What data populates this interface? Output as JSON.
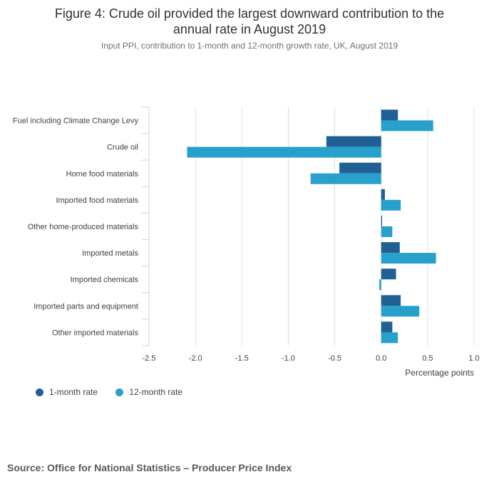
{
  "title_line1": "Figure 4: Crude oil provided the largest downward contribution to the",
  "title_line2": "annual rate in August 2019",
  "subtitle": "Input PPI, contribution to 1-month and 12-month growth rate, UK, August 2019",
  "source": "Source: Office for National Statistics – Producer Price Index",
  "colors": {
    "one_month": "#206095",
    "twelve_month": "#27a0cc",
    "grid": "#e0e0e0",
    "axis": "#d0d0de"
  },
  "chart_data": {
    "type": "bar",
    "orientation": "horizontal",
    "title": "Figure 4: Crude oil provided the largest downward contribution to the annual rate in August 2019",
    "xlabel": "Percentage points",
    "ylabel": "",
    "xlim": [
      -2.5,
      1.0
    ],
    "xticks": [
      -2.5,
      -2.0,
      -1.5,
      -1.0,
      -0.5,
      0.0,
      0.5,
      1.0
    ],
    "xtick_labels": [
      "-2.5",
      "-2.0",
      "-1.5",
      "-1.0",
      "-0.5",
      "0.0",
      "0.5",
      "1.0"
    ],
    "categories": [
      "Fuel including Climate Change Levy",
      "Crude oil",
      "Home food materials",
      "Imported food materials",
      "Other home-produced materials",
      "Imported metals",
      "Imported chemicals",
      "Imported parts and equipment",
      "Other imported materials"
    ],
    "series": [
      {
        "name": "1-month rate",
        "values": [
          0.18,
          -0.59,
          -0.45,
          0.04,
          0.01,
          0.2,
          0.16,
          0.21,
          0.12
        ]
      },
      {
        "name": "12-month rate",
        "values": [
          0.56,
          -2.09,
          -0.76,
          0.21,
          0.12,
          0.59,
          -0.02,
          0.41,
          0.18
        ]
      }
    ],
    "legend_position": "bottom-left",
    "grid": true
  }
}
